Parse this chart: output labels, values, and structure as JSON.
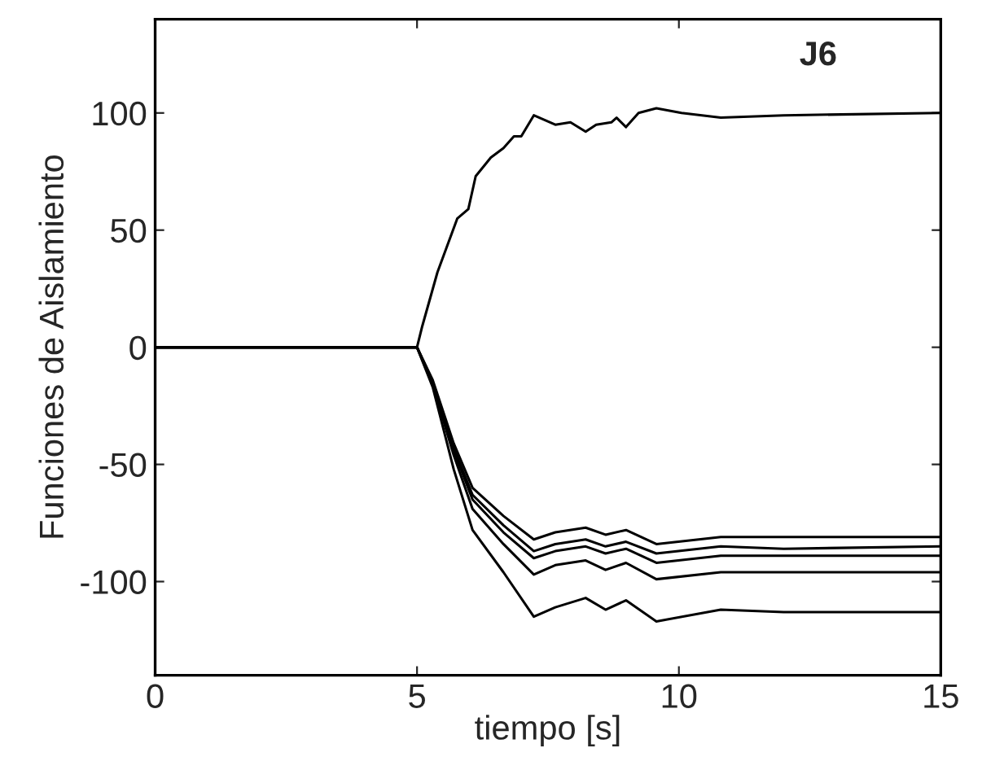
{
  "chart_data": {
    "type": "line",
    "xlabel": "tiempo [s]",
    "ylabel": "Funciones de Aislamiento",
    "annotations": [
      "J6"
    ],
    "xlim": [
      0,
      15
    ],
    "ylim": [
      -140,
      140
    ],
    "xticks": [
      0,
      5,
      10,
      15
    ],
    "yticks": [
      -100,
      -50,
      0,
      50,
      100
    ],
    "grid": false,
    "legend": false,
    "line_style": "solid",
    "marker": "none",
    "series": [
      {
        "color": "#000000",
        "x": [
          0,
          5,
          5.1,
          5.39,
          5.77,
          5.98,
          6.12,
          6.41,
          6.65,
          6.85,
          6.99,
          7.23,
          7.64,
          7.93,
          8.22,
          8.42,
          8.71,
          8.81,
          8.99,
          9.23,
          9.57,
          10.05,
          10.8,
          12,
          15
        ],
        "values": [
          0,
          0,
          9,
          32,
          55,
          59,
          73,
          81,
          85,
          90,
          90,
          99,
          95,
          96,
          92,
          95,
          96,
          98,
          94,
          100,
          102,
          100,
          98,
          99,
          100
        ]
      },
      {
        "color": "#000000",
        "x": [
          0,
          5,
          5.3,
          5.7,
          6.06,
          6.65,
          7.23,
          7.64,
          8.22,
          8.6,
          8.99,
          9.57,
          10.8,
          12,
          15
        ],
        "values": [
          0,
          0,
          -14,
          -41,
          -60,
          -72,
          -82,
          -79,
          -77,
          -80,
          -78,
          -84,
          -81,
          -81,
          -81
        ]
      },
      {
        "color": "#000000",
        "x": [
          0,
          5,
          5.3,
          5.7,
          6.06,
          6.65,
          7.23,
          7.64,
          8.22,
          8.6,
          8.99,
          9.57,
          10.8,
          12,
          15
        ],
        "values": [
          0,
          0,
          -15,
          -43,
          -63,
          -76,
          -87,
          -84,
          -82,
          -85,
          -83,
          -88,
          -85,
          -86,
          -85
        ]
      },
      {
        "color": "#000000",
        "x": [
          0,
          5,
          5.3,
          5.7,
          6.06,
          6.65,
          7.23,
          7.64,
          8.22,
          8.6,
          8.99,
          9.57,
          10.8,
          12,
          15
        ],
        "values": [
          0,
          0,
          -15,
          -44,
          -65,
          -79,
          -90,
          -87,
          -85,
          -88,
          -86,
          -92,
          -89,
          -89,
          -89
        ]
      },
      {
        "color": "#000000",
        "x": [
          0,
          5,
          5.3,
          5.7,
          6.06,
          6.65,
          7.23,
          7.64,
          8.22,
          8.6,
          8.99,
          9.57,
          10.8,
          12,
          15
        ],
        "values": [
          0,
          0,
          -16,
          -46,
          -69,
          -84,
          -97,
          -93,
          -91,
          -95,
          -92,
          -99,
          -96,
          -96,
          -96
        ]
      },
      {
        "color": "#000000",
        "x": [
          0,
          5,
          5.3,
          5.7,
          6.06,
          6.65,
          7.23,
          7.64,
          8.22,
          8.6,
          8.99,
          9.57,
          10.8,
          12,
          15
        ],
        "values": [
          0,
          0,
          -17,
          -52,
          -78,
          -96,
          -115,
          -111,
          -107,
          -112,
          -108,
          -117,
          -112,
          -113,
          -113
        ]
      }
    ]
  }
}
